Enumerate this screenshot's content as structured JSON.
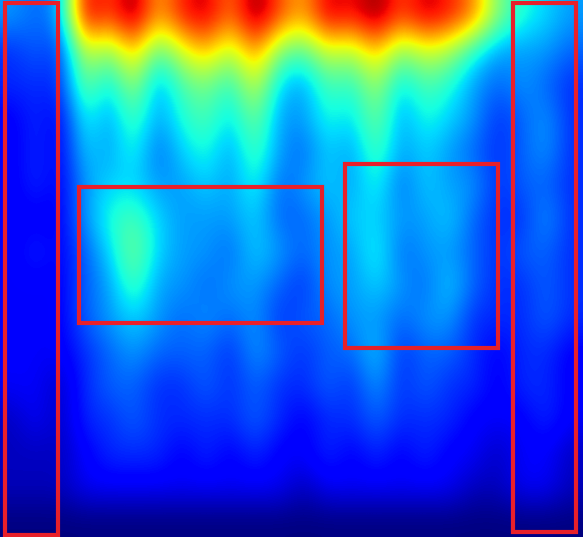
{
  "chart_data": {
    "type": "heatmap",
    "tick_labels": false,
    "cells": [
      [
        0.3,
        0.25,
        0.3,
        0.9,
        0.8,
        0.95,
        0.7,
        0.85,
        0.9,
        0.75,
        0.95,
        0.8,
        0.7,
        0.9,
        0.85,
        0.95,
        0.8,
        0.9,
        0.85,
        0.75,
        0.5,
        0.4,
        0.35,
        0.3
      ],
      [
        0.2,
        0.25,
        0.2,
        0.6,
        0.5,
        0.7,
        0.45,
        0.6,
        0.7,
        0.55,
        0.75,
        0.5,
        0.45,
        0.6,
        0.55,
        0.7,
        0.5,
        0.6,
        0.55,
        0.4,
        0.3,
        0.3,
        0.3,
        0.25
      ],
      [
        0.2,
        0.2,
        0.2,
        0.5,
        0.35,
        0.55,
        0.3,
        0.45,
        0.5,
        0.4,
        0.6,
        0.35,
        0.3,
        0.45,
        0.4,
        0.55,
        0.35,
        0.45,
        0.4,
        0.3,
        0.25,
        0.3,
        0.25,
        0.2
      ],
      [
        0.15,
        0.2,
        0.15,
        0.4,
        0.3,
        0.45,
        0.3,
        0.4,
        0.45,
        0.35,
        0.5,
        0.3,
        0.3,
        0.4,
        0.35,
        0.5,
        0.3,
        0.4,
        0.35,
        0.3,
        0.2,
        0.25,
        0.3,
        0.2
      ],
      [
        0.15,
        0.2,
        0.15,
        0.35,
        0.3,
        0.4,
        0.25,
        0.35,
        0.4,
        0.3,
        0.45,
        0.3,
        0.25,
        0.35,
        0.3,
        0.45,
        0.3,
        0.35,
        0.3,
        0.25,
        0.2,
        0.25,
        0.3,
        0.2
      ],
      [
        0.15,
        0.2,
        0.15,
        0.3,
        0.35,
        0.35,
        0.3,
        0.3,
        0.35,
        0.3,
        0.4,
        0.25,
        0.3,
        0.35,
        0.3,
        0.4,
        0.25,
        0.35,
        0.3,
        0.3,
        0.2,
        0.25,
        0.25,
        0.2
      ],
      [
        0.15,
        0.15,
        0.15,
        0.3,
        0.4,
        0.45,
        0.35,
        0.3,
        0.3,
        0.3,
        0.35,
        0.25,
        0.25,
        0.3,
        0.35,
        0.35,
        0.3,
        0.3,
        0.35,
        0.25,
        0.2,
        0.2,
        0.3,
        0.2
      ],
      [
        0.15,
        0.2,
        0.15,
        0.25,
        0.35,
        0.5,
        0.35,
        0.3,
        0.3,
        0.25,
        0.35,
        0.3,
        0.25,
        0.3,
        0.3,
        0.4,
        0.25,
        0.3,
        0.3,
        0.25,
        0.2,
        0.25,
        0.25,
        0.2
      ],
      [
        0.15,
        0.15,
        0.15,
        0.25,
        0.3,
        0.45,
        0.3,
        0.3,
        0.25,
        0.3,
        0.3,
        0.25,
        0.2,
        0.3,
        0.3,
        0.35,
        0.3,
        0.25,
        0.35,
        0.25,
        0.2,
        0.2,
        0.25,
        0.2
      ],
      [
        0.15,
        0.15,
        0.15,
        0.25,
        0.3,
        0.35,
        0.3,
        0.25,
        0.3,
        0.25,
        0.3,
        0.2,
        0.25,
        0.25,
        0.3,
        0.3,
        0.25,
        0.3,
        0.3,
        0.2,
        0.2,
        0.2,
        0.25,
        0.2
      ],
      [
        0.15,
        0.15,
        0.15,
        0.2,
        0.25,
        0.3,
        0.25,
        0.25,
        0.25,
        0.2,
        0.3,
        0.25,
        0.2,
        0.25,
        0.25,
        0.35,
        0.2,
        0.25,
        0.25,
        0.2,
        0.15,
        0.2,
        0.2,
        0.15
      ],
      [
        0.15,
        0.15,
        0.1,
        0.2,
        0.25,
        0.25,
        0.2,
        0.2,
        0.25,
        0.2,
        0.25,
        0.2,
        0.2,
        0.25,
        0.2,
        0.3,
        0.2,
        0.25,
        0.2,
        0.2,
        0.15,
        0.2,
        0.2,
        0.15
      ],
      [
        0.1,
        0.15,
        0.1,
        0.2,
        0.2,
        0.25,
        0.2,
        0.2,
        0.2,
        0.2,
        0.25,
        0.2,
        0.15,
        0.2,
        0.2,
        0.25,
        0.2,
        0.2,
        0.2,
        0.15,
        0.15,
        0.15,
        0.2,
        0.15
      ],
      [
        0.1,
        0.1,
        0.1,
        0.15,
        0.2,
        0.2,
        0.2,
        0.15,
        0.2,
        0.15,
        0.2,
        0.15,
        0.15,
        0.2,
        0.15,
        0.2,
        0.15,
        0.2,
        0.15,
        0.15,
        0.1,
        0.15,
        0.15,
        0.1
      ],
      [
        0.1,
        0.1,
        0.1,
        0.15,
        0.15,
        0.15,
        0.15,
        0.15,
        0.15,
        0.15,
        0.15,
        0.15,
        0.1,
        0.15,
        0.15,
        0.15,
        0.15,
        0.15,
        0.15,
        0.1,
        0.1,
        0.15,
        0.15,
        0.1
      ],
      [
        0.05,
        0.05,
        0.05,
        0.05,
        0.05,
        0.05,
        0.05,
        0.05,
        0.05,
        0.05,
        0.05,
        0.05,
        0.05,
        0.05,
        0.05,
        0.05,
        0.05,
        0.05,
        0.05,
        0.05,
        0.05,
        0.05,
        0.05,
        0.05
      ]
    ]
  }
}
